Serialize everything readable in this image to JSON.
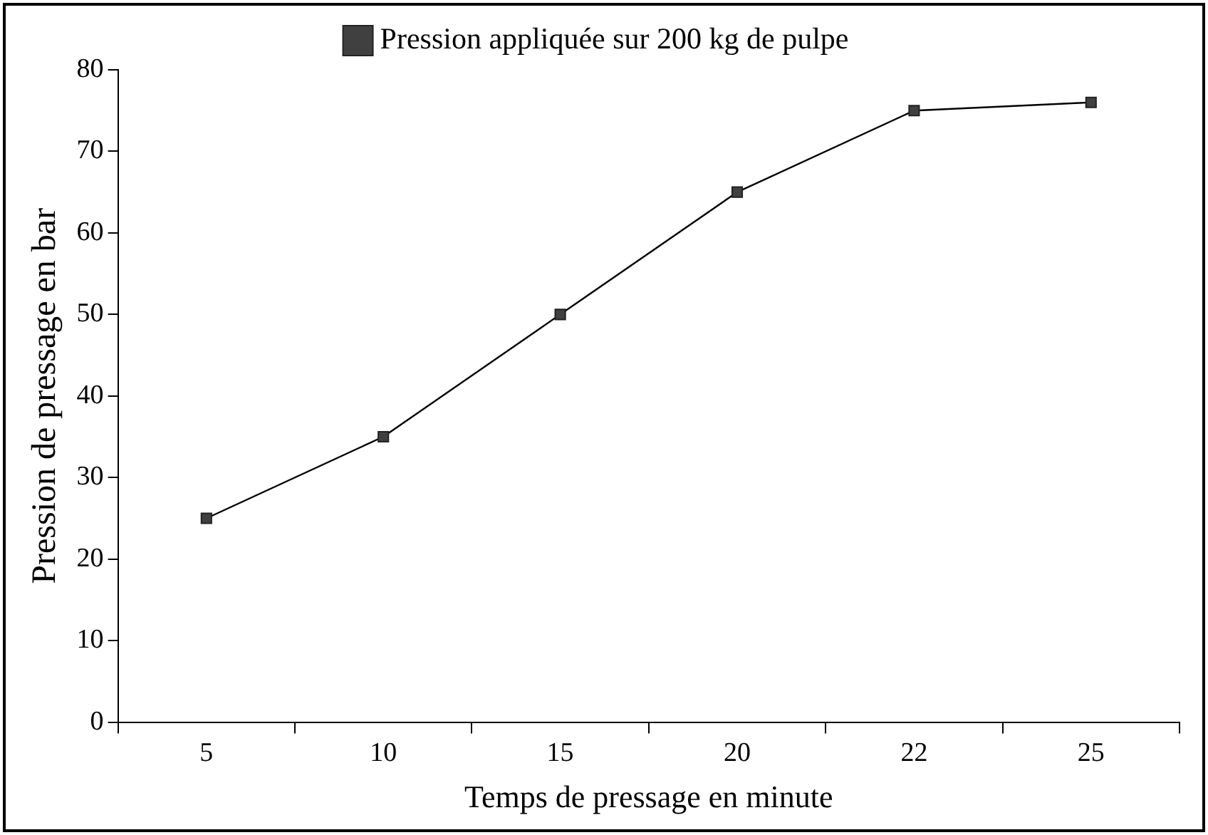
{
  "chart_data": {
    "type": "line",
    "xlabel": "Temps de pressage en minute",
    "ylabel": "Pression de pressage en bar",
    "categories": [
      "5",
      "10",
      "15",
      "20",
      "22",
      "25"
    ],
    "series": [
      {
        "name": "Pression appliquée sur 200 kg de pulpe",
        "color": "#404040",
        "values": [
          25,
          35,
          50,
          65,
          75,
          76
        ]
      }
    ],
    "ylim": [
      0,
      80
    ],
    "yticks": [
      0,
      10,
      20,
      30,
      40,
      50,
      60,
      70,
      80
    ],
    "grid": false,
    "legend": "top",
    "marker": "square",
    "line_style": "solid"
  }
}
